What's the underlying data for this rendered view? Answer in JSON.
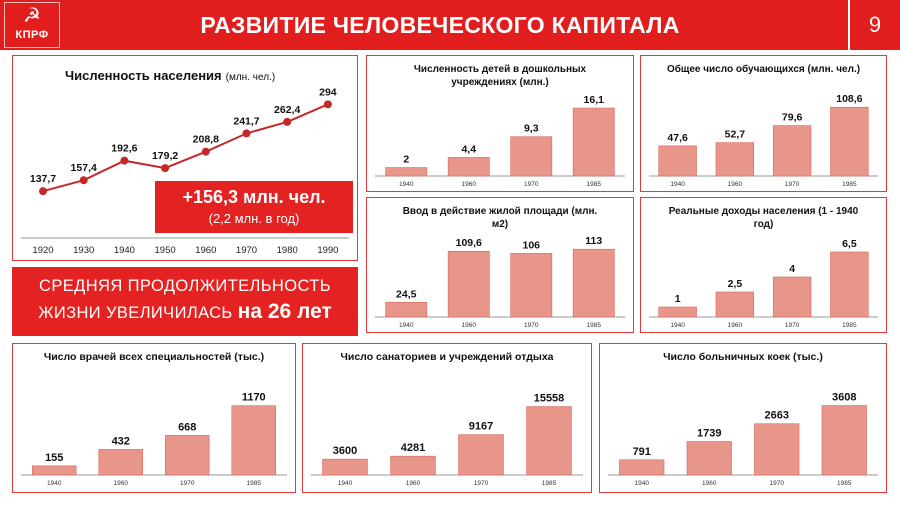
{
  "header": {
    "logo_symbol": "☭",
    "logo_text": "КПРФ",
    "title": "РАЗВИТИЕ ЧЕЛОВЕЧЕСКОГО КАПИТАЛА",
    "page_number": "9"
  },
  "colors": {
    "header_red": "#e21d1d",
    "accent_red": "#e52222",
    "bar_fill": "#e8958a",
    "bar_stroke": "#d46a5e",
    "line": "#c62828"
  },
  "population_stat": {
    "value": "+156,3 млн. чел.",
    "sub": "(2,2 млн. в год)"
  },
  "life_expectancy": {
    "line1": "СРЕДНЯЯ ПРОДОЛЖИТЕЛЬНОСТЬ",
    "line2": "ЖИЗНИ УВЕЛИЧИЛАСЬ",
    "highlight": "на 26 лет"
  },
  "chart_data": [
    {
      "id": "population",
      "type": "line",
      "title": "Численность населения",
      "title_unit": "(млн. чел.)",
      "categories": [
        "1920",
        "1930",
        "1940",
        "1950",
        "1960",
        "1970",
        "1980",
        "1990"
      ],
      "values": [
        137.7,
        157.4,
        192.6,
        179.2,
        208.8,
        241.7,
        262.4,
        294
      ],
      "labels": [
        "137,7",
        "157,4",
        "192,6",
        "179,2",
        "208,8",
        "241,7",
        "262,4",
        "294"
      ],
      "ylim": [
        120,
        300
      ],
      "grid": false,
      "legend": "none"
    },
    {
      "id": "preschool",
      "type": "bar",
      "title_lines": [
        "Численность детей в дошкольных",
        "учреждениях (млн.)"
      ],
      "categories": [
        "1940",
        "1960",
        "1970",
        "1985"
      ],
      "values": [
        2,
        4.4,
        9.3,
        16.1
      ],
      "labels": [
        "2",
        "4,4",
        "9,3",
        "16,1"
      ],
      "ylim": [
        0,
        18
      ],
      "grid": false,
      "legend": "none"
    },
    {
      "id": "students",
      "type": "bar",
      "title_lines": [
        "Общее число обучающихся (млн. чел.)"
      ],
      "categories": [
        "1940",
        "1960",
        "1970",
        "1985"
      ],
      "values": [
        47.6,
        52.7,
        79.6,
        108.6
      ],
      "labels": [
        "47,6",
        "52,7",
        "79,6",
        "108,6"
      ],
      "ylim": [
        0,
        120
      ],
      "grid": false,
      "legend": "none"
    },
    {
      "id": "housing",
      "type": "bar",
      "title_lines": [
        "Ввод в действие жилой площади (млн.",
        "м2)"
      ],
      "categories": [
        "1940",
        "1960",
        "1970",
        "1985"
      ],
      "values": [
        24.5,
        109.6,
        106,
        113
      ],
      "labels": [
        "24,5",
        "109,6",
        "106",
        "113"
      ],
      "ylim": [
        0,
        125
      ],
      "grid": false,
      "legend": "none"
    },
    {
      "id": "income",
      "type": "bar",
      "title_lines": [
        "Реальные доходы населения (1 - 1940",
        "год)"
      ],
      "categories": [
        "1940",
        "1960",
        "1970",
        "1985"
      ],
      "values": [
        1,
        2.5,
        4,
        6.5
      ],
      "labels": [
        "1",
        "2,5",
        "4",
        "6,5"
      ],
      "ylim": [
        0,
        7.5
      ],
      "grid": false,
      "legend": "none"
    },
    {
      "id": "doctors",
      "type": "bar",
      "title_lines": [
        "Число врачей всех специальностей (тыс.)"
      ],
      "categories": [
        "1940",
        "1960",
        "1970",
        "1985"
      ],
      "values": [
        155,
        432,
        668,
        1170
      ],
      "labels": [
        "155",
        "432",
        "668",
        "1170"
      ],
      "ylim": [
        0,
        1300
      ],
      "grid": false,
      "legend": "none"
    },
    {
      "id": "sanatoriums",
      "type": "bar",
      "title_lines": [
        "Число санаториев и учреждений отдыха"
      ],
      "categories": [
        "1940",
        "1960",
        "1970",
        "1985"
      ],
      "values": [
        3600,
        4281,
        9167,
        15558
      ],
      "labels": [
        "3600",
        "4281",
        "9167",
        "15558"
      ],
      "ylim": [
        0,
        17500
      ],
      "grid": false,
      "legend": "none"
    },
    {
      "id": "hospital_beds",
      "type": "bar",
      "title_lines": [
        "Число больничных коек (тыс.)"
      ],
      "categories": [
        "1940",
        "1960",
        "1970",
        "1985"
      ],
      "values": [
        791,
        1739,
        2663,
        3608
      ],
      "labels": [
        "791",
        "1739",
        "2663",
        "3608"
      ],
      "ylim": [
        0,
        4000
      ],
      "grid": false,
      "legend": "none"
    }
  ]
}
